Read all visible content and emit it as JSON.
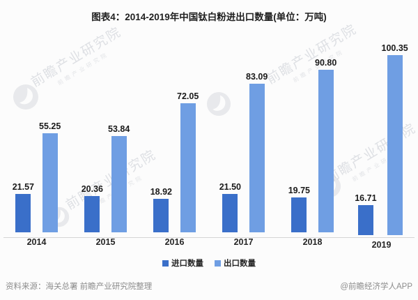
{
  "title": "图表4：2014-2019年中国钛白粉进出口数量(单位：万吨)",
  "chart_data": {
    "type": "bar",
    "categories": [
      "2014",
      "2015",
      "2016",
      "2017",
      "2018",
      "2019"
    ],
    "series": [
      {
        "name": "进口数量",
        "color": "#3A6FC9",
        "values": [
          21.57,
          20.36,
          18.92,
          21.5,
          19.75,
          16.71
        ]
      },
      {
        "name": "出口数量",
        "color": "#6F9EE3",
        "values": [
          55.25,
          53.84,
          72.05,
          83.09,
          90.8,
          100.35
        ]
      }
    ],
    "ylim": [
      0,
      108
    ],
    "xlabel": "",
    "ylabel": "万吨",
    "grid": false,
    "legend_position": "bottom",
    "value_labels": true,
    "value_label_decimals": 2
  },
  "legend": {
    "items": [
      {
        "label": "进口数量",
        "color": "#3A6FC9"
      },
      {
        "label": "出口数量",
        "color": "#6F9EE3"
      }
    ]
  },
  "footer": {
    "source": "资料来源：海关总署 前瞻产业研究院整理",
    "credit": "@前瞻经济学人APP"
  },
  "watermark": {
    "text": "前瞻产业研究院"
  },
  "colors": {
    "background": "#fcfcfc",
    "axis_line": "#d5d5d5",
    "title_text": "#1f1f1f",
    "value_text": "#1a1a1a",
    "footer_text": "#8c8c8c",
    "watermark_text": "#c6cad1"
  }
}
